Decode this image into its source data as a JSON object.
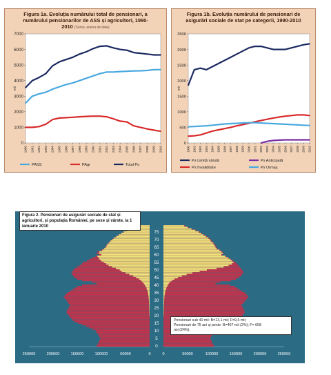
{
  "fig1a": {
    "title_lines": [
      "Figura 1a. Evoluția numărului total de pensionari, a",
      "numărului pensionarilor de ASS și agricultori, 1990-",
      "2010"
    ],
    "title_note": "(Sursa: anexa de date)",
    "ylabel": "mii",
    "legend": [
      "PASS",
      "PAgr",
      "Total Ps"
    ],
    "colors": {
      "PASS": "#4aa8e0",
      "PAgr": "#d82a2a",
      "Total Ps": "#1a2860"
    }
  },
  "fig1b": {
    "title_lines": [
      "Figura 1b. Evoluția numărului de pensionari de",
      "asigurări sociale de stat pe categorii, 1990-2010"
    ],
    "ylabel": "mii",
    "legend": [
      "Ps Limită vârstă",
      "Ps Anticipată",
      "Ps Invaliditate",
      "Ps Urmaș"
    ],
    "colors": {
      "Ps Limită vârstă": "#1a2860",
      "Ps Anticipată": "#7a2ca0",
      "Ps Invaliditate": "#d82a2a",
      "Ps Urmaș": "#4aa8e0"
    }
  },
  "fig2": {
    "title": "Figura 2. Pensionari de asigurări sociale de stat și agricultori, și populația României, pe sexe și vârste, la 1 ianuarie 2010",
    "note_lines": [
      "Pensionari sub 40 mii: B=13,1 mii; F=9,6 mii;",
      "Pensionari de 75 ani și peste: B=407 mii (2%); F= 608",
      "mii (24%)."
    ],
    "colors": {
      "male_pop": "#c4324a",
      "female_pop": "#c4324a",
      "male_pens": "#efe07a",
      "female_pens": "#efe07a",
      "bg": "#2b6b84"
    }
  },
  "chart_data": [
    {
      "type": "line",
      "title": "Figura 1a. Evoluția numărului total de pensionari, a numărului pensionarilor de ASS și agricultori, 1990-2010",
      "ylabel": "mii",
      "x": [
        "1990",
        "1991",
        "1992",
        "1993",
        "1994",
        "1995",
        "1996",
        "1997",
        "1998",
        "1999",
        "2000",
        "2001",
        "2002",
        "2003",
        "2004",
        "2005",
        "2006",
        "2007",
        "2008",
        "2009",
        "2010"
      ],
      "ylim": [
        0,
        7000
      ],
      "yticks": [
        0,
        1000,
        2000,
        3000,
        4000,
        5000,
        6000,
        7000
      ],
      "series": [
        {
          "name": "PASS",
          "values": [
            2550,
            3000,
            3150,
            3250,
            3450,
            3600,
            3750,
            3850,
            4000,
            4150,
            4300,
            4450,
            4550,
            4550,
            4580,
            4600,
            4620,
            4630,
            4650,
            4700,
            4700
          ]
        },
        {
          "name": "PAgr",
          "values": [
            1000,
            1000,
            1050,
            1200,
            1500,
            1600,
            1620,
            1650,
            1680,
            1700,
            1720,
            1720,
            1680,
            1550,
            1400,
            1350,
            1100,
            1000,
            900,
            820,
            750
          ]
        },
        {
          "name": "Total Ps",
          "values": [
            3550,
            4000,
            4200,
            4450,
            4950,
            5200,
            5350,
            5500,
            5700,
            5850,
            6050,
            6200,
            6230,
            6100,
            6000,
            5950,
            5800,
            5750,
            5700,
            5650,
            5650
          ]
        }
      ],
      "legend_position": "bottom",
      "grid": false
    },
    {
      "type": "line",
      "title": "Figura 1b. Evoluția numărului de pensionari de asigurări sociale de stat pe categorii, 1990-2010",
      "ylabel": "mii",
      "x": [
        "1990",
        "1991",
        "1992",
        "1993",
        "1994",
        "1995",
        "1996",
        "1997",
        "1998",
        "1999",
        "2000",
        "2001",
        "2002",
        "2003",
        "2004",
        "2005",
        "2006",
        "2007",
        "2008",
        "2009",
        "2010"
      ],
      "ylim": [
        0,
        3500
      ],
      "yticks": [
        0,
        500,
        1000,
        1500,
        2000,
        2500,
        3000,
        3500
      ],
      "series": [
        {
          "name": "Ps Limită vârstă",
          "values": [
            1850,
            2350,
            2400,
            2350,
            2450,
            2550,
            2650,
            2750,
            2850,
            2950,
            3050,
            3100,
            3100,
            3050,
            3000,
            3000,
            3000,
            3050,
            3100,
            3150,
            3180
          ]
        },
        {
          "name": "Ps Anticipată",
          "values": [
            null,
            null,
            null,
            null,
            null,
            null,
            null,
            null,
            null,
            null,
            null,
            null,
            0,
            50,
            80,
            90,
            100,
            100,
            100,
            100,
            100
          ]
        },
        {
          "name": "Ps Invaliditate",
          "values": [
            220,
            230,
            260,
            320,
            380,
            420,
            460,
            500,
            550,
            590,
            630,
            680,
            720,
            760,
            800,
            830,
            860,
            880,
            900,
            900,
            880
          ]
        },
        {
          "name": "Ps Urmaș",
          "values": [
            520,
            530,
            540,
            550,
            570,
            590,
            610,
            620,
            630,
            640,
            650,
            650,
            640,
            630,
            620,
            610,
            600,
            590,
            580,
            570,
            560
          ]
        }
      ],
      "legend_position": "bottom",
      "grid": false
    },
    {
      "type": "bar",
      "subtype": "population-pyramid",
      "title": "Figura 2. Pensionari de asigurări sociale de stat și agricultori, și populația României, pe sexe și vârste, la 1 ianuarie 2010",
      "ages": [
        0,
        1,
        2,
        3,
        4,
        5,
        6,
        7,
        8,
        9,
        10,
        11,
        12,
        13,
        14,
        15,
        16,
        17,
        18,
        19,
        20,
        21,
        22,
        23,
        24,
        25,
        26,
        27,
        28,
        29,
        30,
        31,
        32,
        33,
        34,
        35,
        36,
        37,
        38,
        39,
        40,
        41,
        42,
        43,
        44,
        45,
        46,
        47,
        48,
        49,
        50,
        51,
        52,
        53,
        54,
        55,
        56,
        57,
        58,
        59,
        60,
        61,
        62,
        63,
        64,
        65,
        66,
        67,
        68,
        69,
        70,
        71,
        72,
        73,
        74,
        75,
        76,
        77,
        78,
        79
      ],
      "age_ticks": [
        0,
        5,
        10,
        15,
        20,
        25,
        30,
        35,
        40,
        45,
        50,
        55,
        60,
        65,
        70,
        75
      ],
      "male_ticks": [
        250000,
        200000,
        150000,
        100000,
        50000,
        0
      ],
      "female_ticks": [
        0,
        50000,
        100000,
        150000,
        200000,
        250000
      ],
      "male_population": [
        110000,
        108000,
        106000,
        105000,
        103000,
        102000,
        104000,
        106000,
        108000,
        110000,
        112000,
        118000,
        125000,
        132000,
        140000,
        148000,
        155000,
        160000,
        162000,
        165000,
        168000,
        170000,
        172000,
        172000,
        170000,
        168000,
        166000,
        165000,
        168000,
        170000,
        172000,
        175000,
        178000,
        176000,
        174000,
        170000,
        165000,
        160000,
        155000,
        150000,
        140000,
        110000,
        120000,
        140000,
        150000,
        155000,
        158000,
        160000,
        162000,
        160000,
        158000,
        155000,
        150000,
        145000,
        140000,
        138000,
        130000,
        125000,
        118000,
        112000,
        105000,
        110000,
        108000,
        100000,
        95000,
        92000,
        90000,
        88000,
        85000,
        82000,
        78000,
        75000,
        70000,
        65000,
        60000,
        55000,
        48000,
        40000,
        35000,
        30000
      ],
      "female_population": [
        105000,
        103000,
        101000,
        100000,
        98000,
        97000,
        99000,
        101000,
        103000,
        105000,
        107000,
        113000,
        120000,
        127000,
        134000,
        142000,
        150000,
        155000,
        158000,
        160000,
        164000,
        166000,
        168000,
        168000,
        166000,
        165000,
        163000,
        162000,
        165000,
        168000,
        170000,
        173000,
        176000,
        174000,
        172000,
        168000,
        163000,
        158000,
        153000,
        148000,
        138000,
        108000,
        118000,
        140000,
        150000,
        156000,
        160000,
        163000,
        166000,
        165000,
        163000,
        160000,
        158000,
        155000,
        152000,
        150000,
        145000,
        140000,
        135000,
        130000,
        122000,
        125000,
        122000,
        118000,
        112000,
        110000,
        108000,
        106000,
        104000,
        100000,
        98000,
        95000,
        90000,
        85000,
        80000,
        75000,
        68000,
        60000,
        52000,
        45000
      ],
      "male_pensioners": [
        0,
        0,
        0,
        0,
        0,
        0,
        0,
        0,
        0,
        0,
        0,
        0,
        0,
        0,
        0,
        0,
        0,
        0,
        0,
        0,
        500,
        600,
        700,
        800,
        900,
        1000,
        1100,
        1200,
        1300,
        1400,
        1500,
        1800,
        2200,
        2600,
        3000,
        3500,
        4500,
        5500,
        6500,
        8000,
        10000,
        12000,
        15000,
        18000,
        22000,
        28000,
        34000,
        42000,
        50000,
        58000,
        62000,
        70000,
        78000,
        85000,
        90000,
        95000,
        100000,
        104000,
        106000,
        108000,
        100000,
        105000,
        104000,
        98000,
        94000,
        91000,
        89000,
        87000,
        84000,
        81000,
        77000,
        74000,
        69000,
        64000,
        59000,
        54000,
        47000,
        39000,
        34000,
        29000
      ],
      "female_pensioners": [
        0,
        0,
        0,
        0,
        0,
        0,
        0,
        0,
        0,
        0,
        0,
        0,
        0,
        0,
        0,
        0,
        0,
        0,
        0,
        0,
        500,
        600,
        700,
        800,
        900,
        1000,
        1100,
        1200,
        1300,
        1400,
        1500,
        1700,
        2000,
        2300,
        2700,
        3200,
        4000,
        5000,
        6000,
        7500,
        9000,
        11000,
        14000,
        18000,
        23000,
        30000,
        38000,
        48000,
        60000,
        75000,
        90000,
        110000,
        125000,
        135000,
        142000,
        145000,
        142000,
        138000,
        133000,
        128000,
        120000,
        123000,
        120000,
        116000,
        110000,
        108000,
        106000,
        104000,
        102000,
        98000,
        96000,
        93000,
        88000,
        83000,
        78000,
        73000,
        66000,
        58000,
        50000,
        43000
      ]
    }
  ]
}
